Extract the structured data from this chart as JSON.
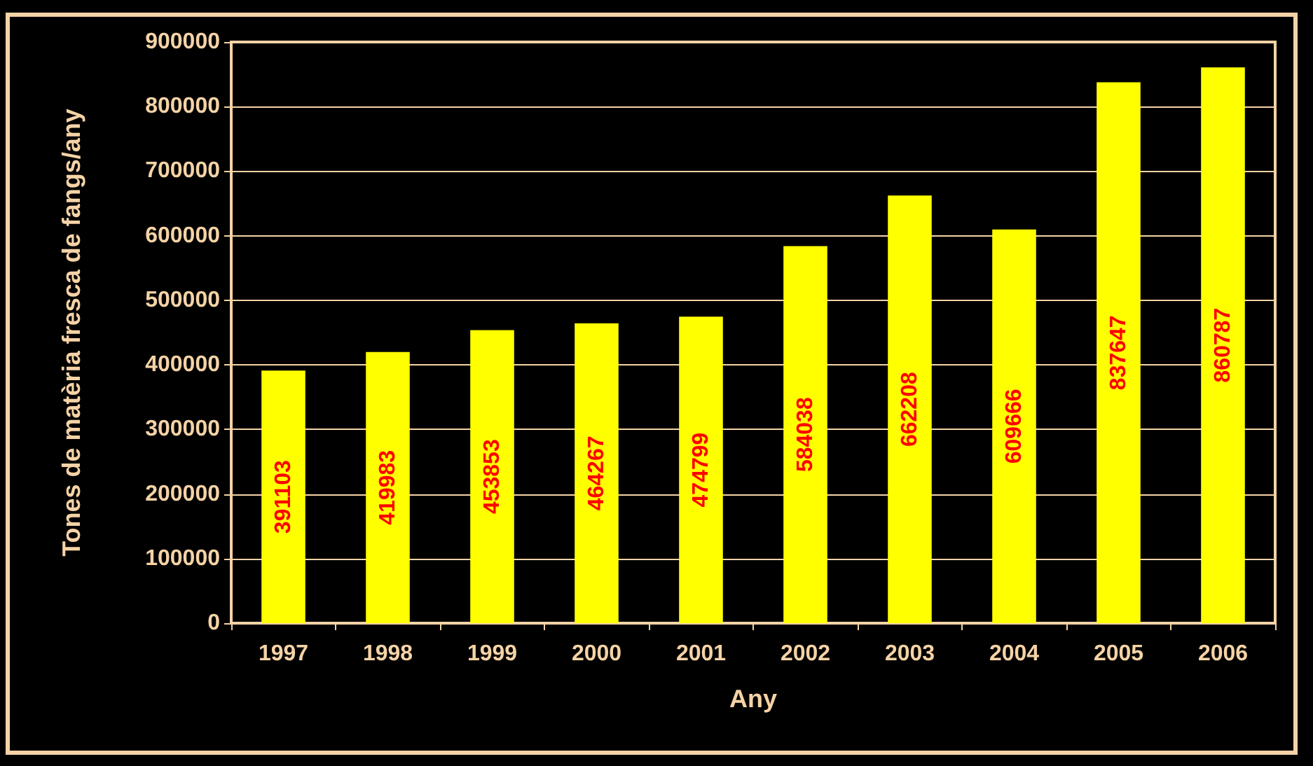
{
  "chart_data": {
    "type": "bar",
    "xlabel": "Any",
    "ylabel": "Tones de matèria fresca de fangs/any",
    "categories": [
      "1997",
      "1998",
      "1999",
      "2000",
      "2001",
      "2002",
      "2003",
      "2004",
      "2005",
      "2006"
    ],
    "values": [
      391103,
      419983,
      453853,
      464267,
      474799,
      584038,
      662208,
      609666,
      837647,
      860787
    ],
    "color": "#ffff00",
    "data_labels": true,
    "ylim": [
      0,
      900000
    ],
    "yticks": [
      0,
      100000,
      200000,
      300000,
      400000,
      500000,
      600000,
      700000,
      800000,
      900000
    ],
    "grid": "y"
  }
}
